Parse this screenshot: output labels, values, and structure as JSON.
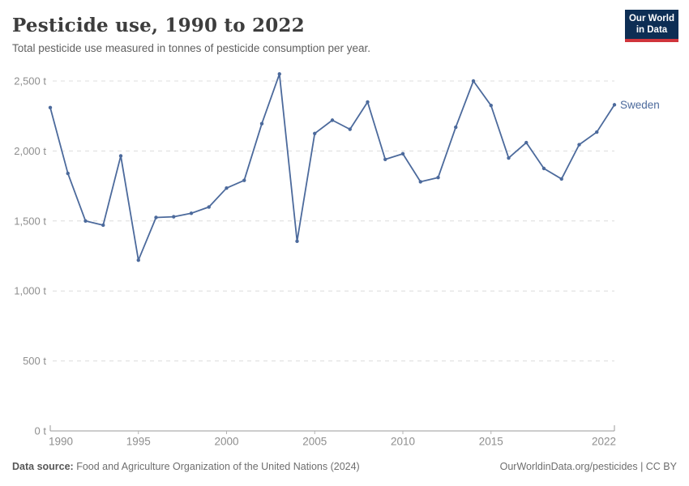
{
  "header": {
    "title": "Pesticide use, 1990 to 2022",
    "subtitle": "Total pesticide use measured in tonnes of pesticide consumption per year.",
    "logo": {
      "line1": "Our World",
      "line2": "in Data"
    }
  },
  "chart_data": {
    "type": "line",
    "title": "Pesticide use, 1990 to 2022",
    "unit": "tonnes",
    "xlim": [
      1990,
      2022
    ],
    "ylim": [
      0,
      2500
    ],
    "grid": true,
    "legend_position": "end-of-line",
    "x_ticks": [
      1990,
      1995,
      2000,
      2005,
      2010,
      2015,
      2022
    ],
    "y_ticks": [
      0,
      500,
      1000,
      1500,
      2000,
      2500
    ],
    "y_tick_labels": [
      "0 t",
      "500 t",
      "1,000 t",
      "1,500 t",
      "2,000 t",
      "2,500 t"
    ],
    "series": [
      {
        "name": "Sweden",
        "color": "#4C6A9C",
        "x": [
          1990,
          1991,
          1992,
          1993,
          1994,
          1995,
          1996,
          1997,
          1998,
          1999,
          2000,
          2001,
          2002,
          2003,
          2004,
          2005,
          2006,
          2007,
          2008,
          2009,
          2010,
          2011,
          2012,
          2013,
          2014,
          2015,
          2016,
          2017,
          2018,
          2019,
          2020,
          2021,
          2022
        ],
        "values": [
          2310,
          1840,
          1500,
          1470,
          1965,
          1220,
          1525,
          1530,
          1555,
          1600,
          1735,
          1790,
          2195,
          2550,
          1355,
          2125,
          2220,
          2155,
          2350,
          1940,
          1980,
          1780,
          1810,
          2170,
          2500,
          2325,
          1950,
          2060,
          1875,
          1800,
          2045,
          2135,
          2330
        ]
      }
    ]
  },
  "footer": {
    "source_label": "Data source:",
    "source_text": " Food and Agriculture Organization of the United Nations (2024)",
    "credit": "OurWorldinData.org/pesticides | CC BY"
  },
  "colors": {
    "line": "#4C6A9C",
    "grid": "#dcdcdc",
    "axis": "#999999",
    "tick": "#b3b3b3",
    "tick_text": "#8e8e8e",
    "logo_bg": "#0d2e54",
    "logo_bar": "#d0353c"
  }
}
